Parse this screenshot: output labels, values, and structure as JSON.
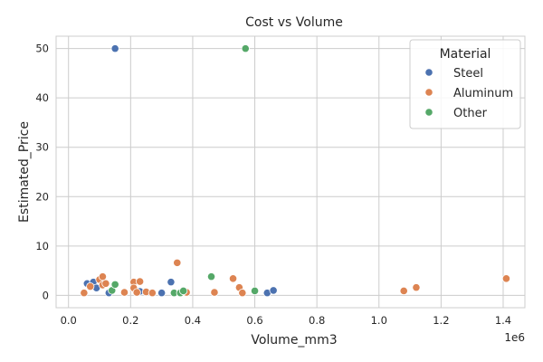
{
  "chart_data": {
    "type": "scatter",
    "title": "Cost vs Volume",
    "xlabel": "Volume_mm3",
    "ylabel": "Estimated_Price",
    "x_offset_label": "1e6",
    "xlim": [
      -0.04,
      1.47
    ],
    "ylim": [
      -2.5,
      52.5
    ],
    "x_ticks": [
      0.0,
      0.2,
      0.4,
      0.6,
      0.8,
      1.0,
      1.2,
      1.4
    ],
    "x_tick_labels": [
      "0.0",
      "0.2",
      "0.4",
      "0.6",
      "0.8",
      "1.0",
      "1.2",
      "1.4"
    ],
    "y_ticks": [
      0,
      10,
      20,
      30,
      40,
      50
    ],
    "y_tick_labels": [
      "0",
      "10",
      "20",
      "30",
      "40",
      "50"
    ],
    "grid": true,
    "legend": {
      "title": "Material",
      "placement": "top-right"
    },
    "series": [
      {
        "name": "Steel",
        "color": "#4c72b0",
        "points": [
          [
            0.15,
            50.0
          ],
          [
            0.06,
            2.4
          ],
          [
            0.08,
            2.7
          ],
          [
            0.09,
            1.5
          ],
          [
            0.13,
            0.5
          ],
          [
            0.23,
            0.8
          ],
          [
            0.3,
            0.5
          ],
          [
            0.33,
            2.7
          ],
          [
            0.64,
            0.5
          ],
          [
            0.66,
            1.0
          ]
        ]
      },
      {
        "name": "Aluminum",
        "color": "#dd8452",
        "points": [
          [
            0.05,
            0.5
          ],
          [
            0.07,
            1.8
          ],
          [
            0.1,
            3.2
          ],
          [
            0.11,
            3.8
          ],
          [
            0.11,
            2.1
          ],
          [
            0.12,
            2.4
          ],
          [
            0.18,
            0.6
          ],
          [
            0.21,
            2.7
          ],
          [
            0.21,
            1.5
          ],
          [
            0.22,
            0.6
          ],
          [
            0.23,
            2.8
          ],
          [
            0.25,
            0.7
          ],
          [
            0.27,
            0.5
          ],
          [
            0.35,
            6.6
          ],
          [
            0.37,
            0.8
          ],
          [
            0.38,
            0.6
          ],
          [
            0.47,
            0.6
          ],
          [
            0.53,
            3.4
          ],
          [
            0.55,
            1.6
          ],
          [
            0.56,
            0.5
          ],
          [
            1.08,
            0.9
          ],
          [
            1.12,
            1.6
          ],
          [
            1.41,
            3.4
          ]
        ]
      },
      {
        "name": "Other",
        "color": "#55a868",
        "points": [
          [
            0.57,
            50.0
          ],
          [
            0.14,
            1.0
          ],
          [
            0.15,
            2.2
          ],
          [
            0.34,
            0.5
          ],
          [
            0.36,
            0.5
          ],
          [
            0.37,
            0.9
          ],
          [
            0.46,
            3.8
          ],
          [
            0.6,
            0.9
          ]
        ]
      }
    ]
  }
}
